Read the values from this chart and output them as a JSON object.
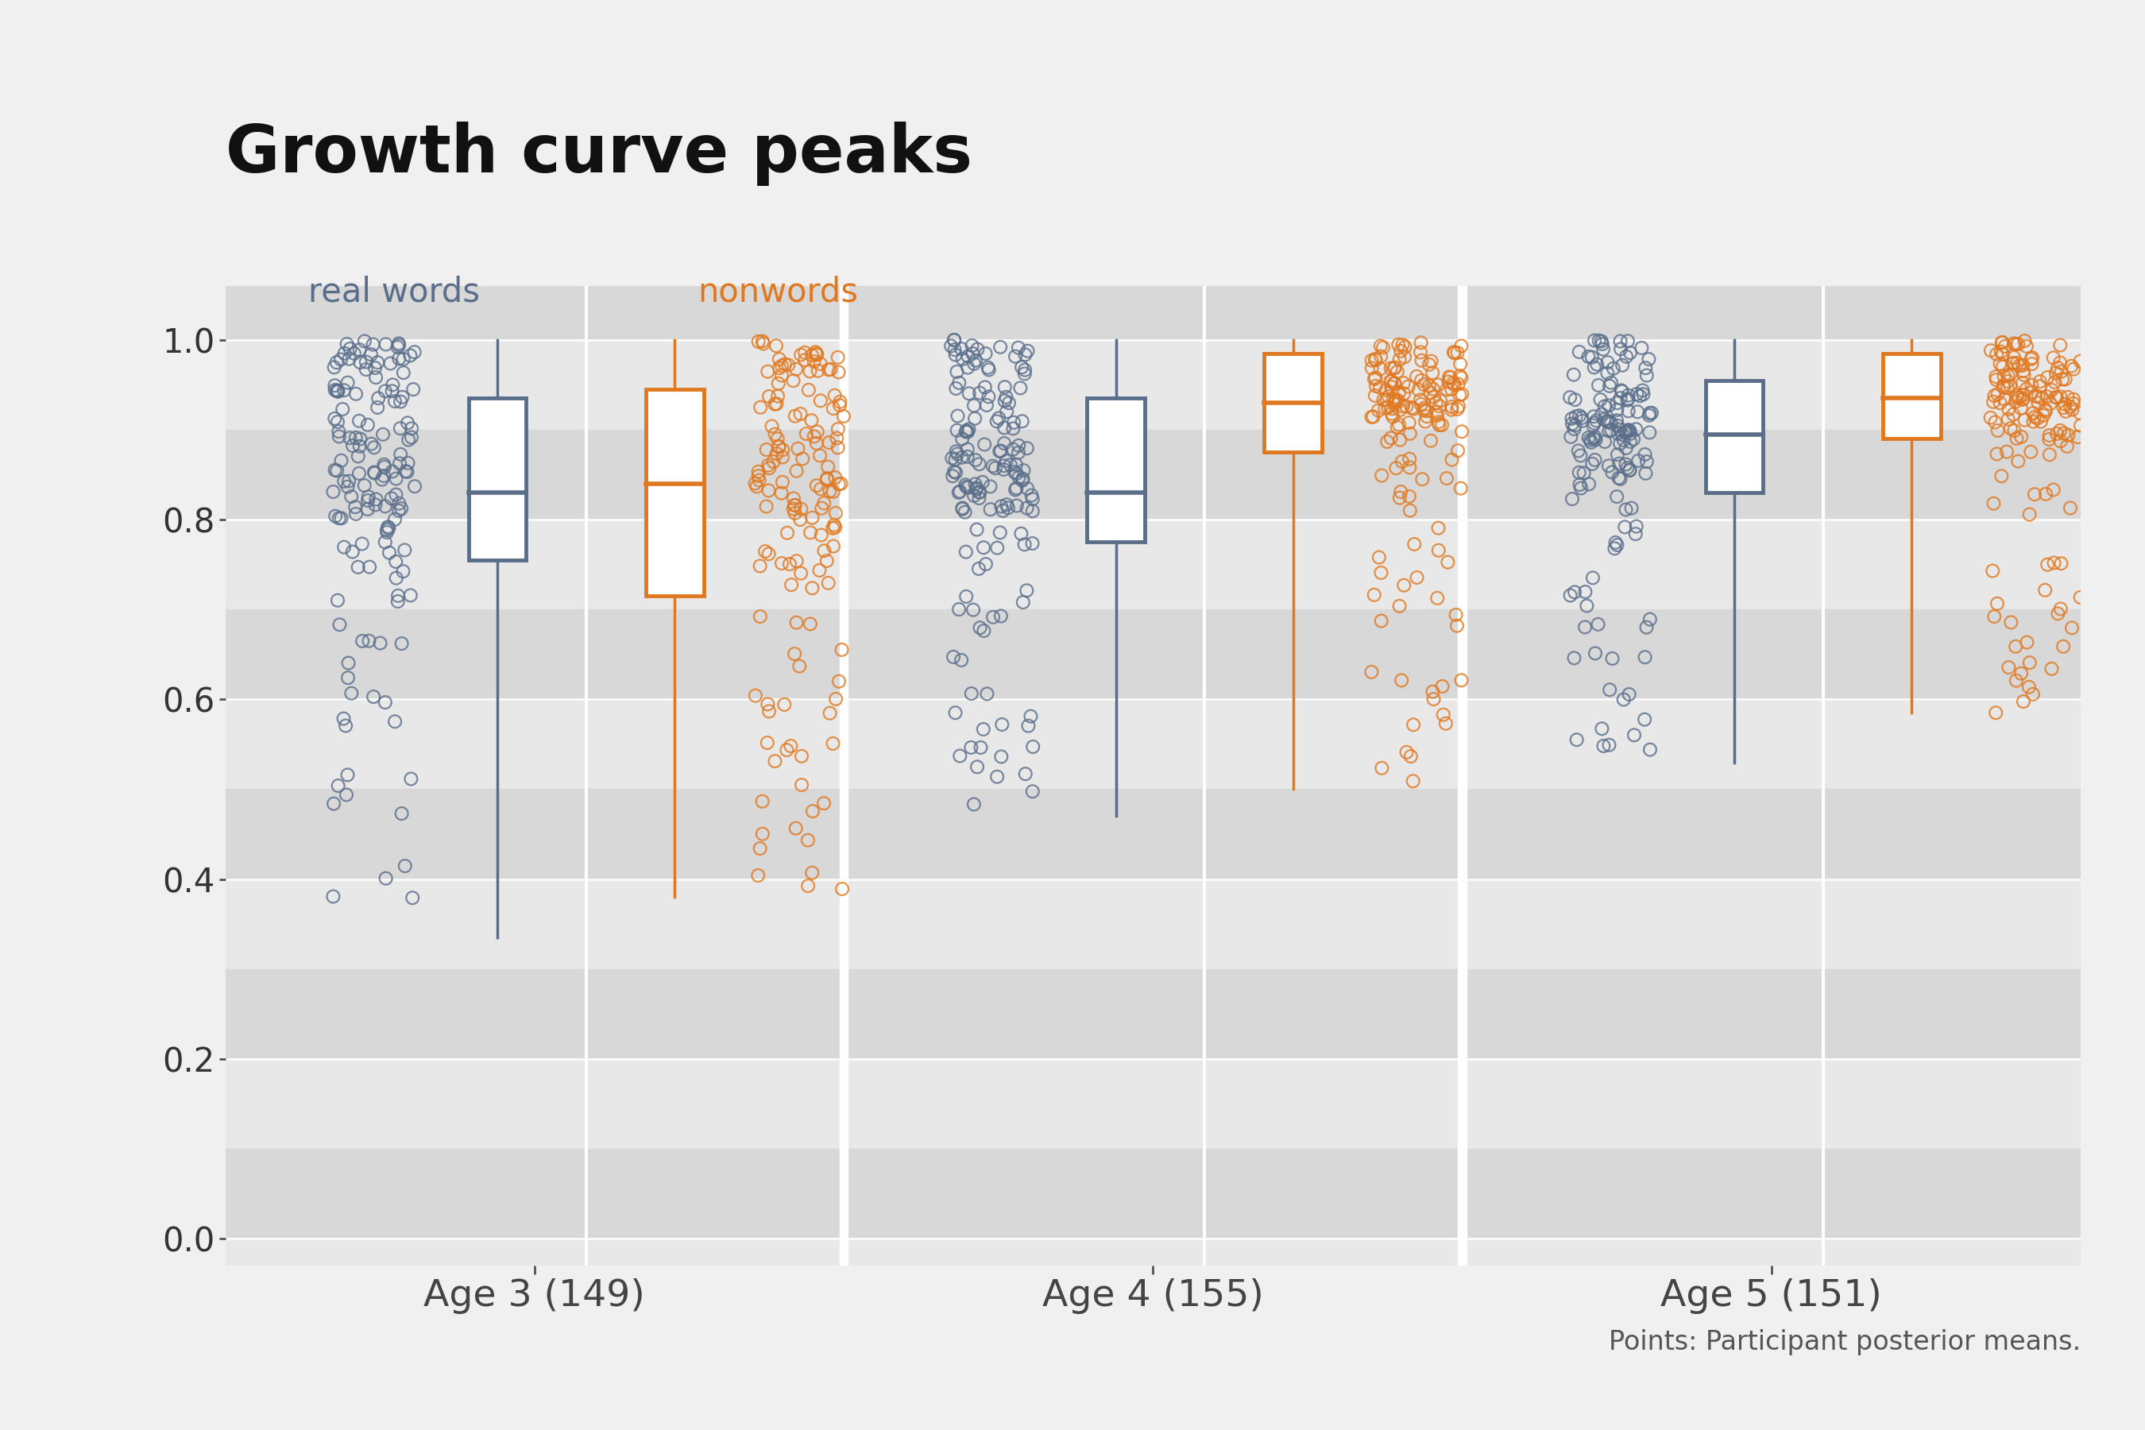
{
  "title": "Growth curve peaks",
  "subtitle": "Points: Participant posterior means.",
  "groups": [
    "Age 3 (149)",
    "Age 4 (155)",
    "Age 5 (151)"
  ],
  "n_per_group": [
    149,
    155,
    151
  ],
  "real_words_color": "#5a6e8a",
  "nonwords_color": "#e07820",
  "panel_bg_dark": "#e0e0e0",
  "panel_bg_light": "#e8e8e8",
  "outer_bg": "#f0f0f0",
  "ylim": [
    -0.03,
    1.06
  ],
  "yticks": [
    0.0,
    0.2,
    0.4,
    0.6,
    0.8,
    1.0
  ],
  "box_stats": {
    "age3_real": {
      "q1": 0.755,
      "median": 0.83,
      "q3": 0.935,
      "whisker_lo": 0.335,
      "whisker_hi": 1.0
    },
    "age3_non": {
      "q1": 0.715,
      "median": 0.84,
      "q3": 0.945,
      "whisker_lo": 0.38,
      "whisker_hi": 1.0
    },
    "age4_real": {
      "q1": 0.775,
      "median": 0.83,
      "q3": 0.935,
      "whisker_lo": 0.47,
      "whisker_hi": 1.0
    },
    "age4_non": {
      "q1": 0.875,
      "median": 0.93,
      "q3": 0.985,
      "whisker_lo": 0.5,
      "whisker_hi": 1.0
    },
    "age5_real": {
      "q1": 0.83,
      "median": 0.895,
      "q3": 0.955,
      "whisker_lo": 0.53,
      "whisker_hi": 1.0
    },
    "age5_non": {
      "q1": 0.89,
      "median": 0.935,
      "q3": 0.985,
      "whisker_lo": 0.585,
      "whisker_hi": 1.0
    }
  }
}
